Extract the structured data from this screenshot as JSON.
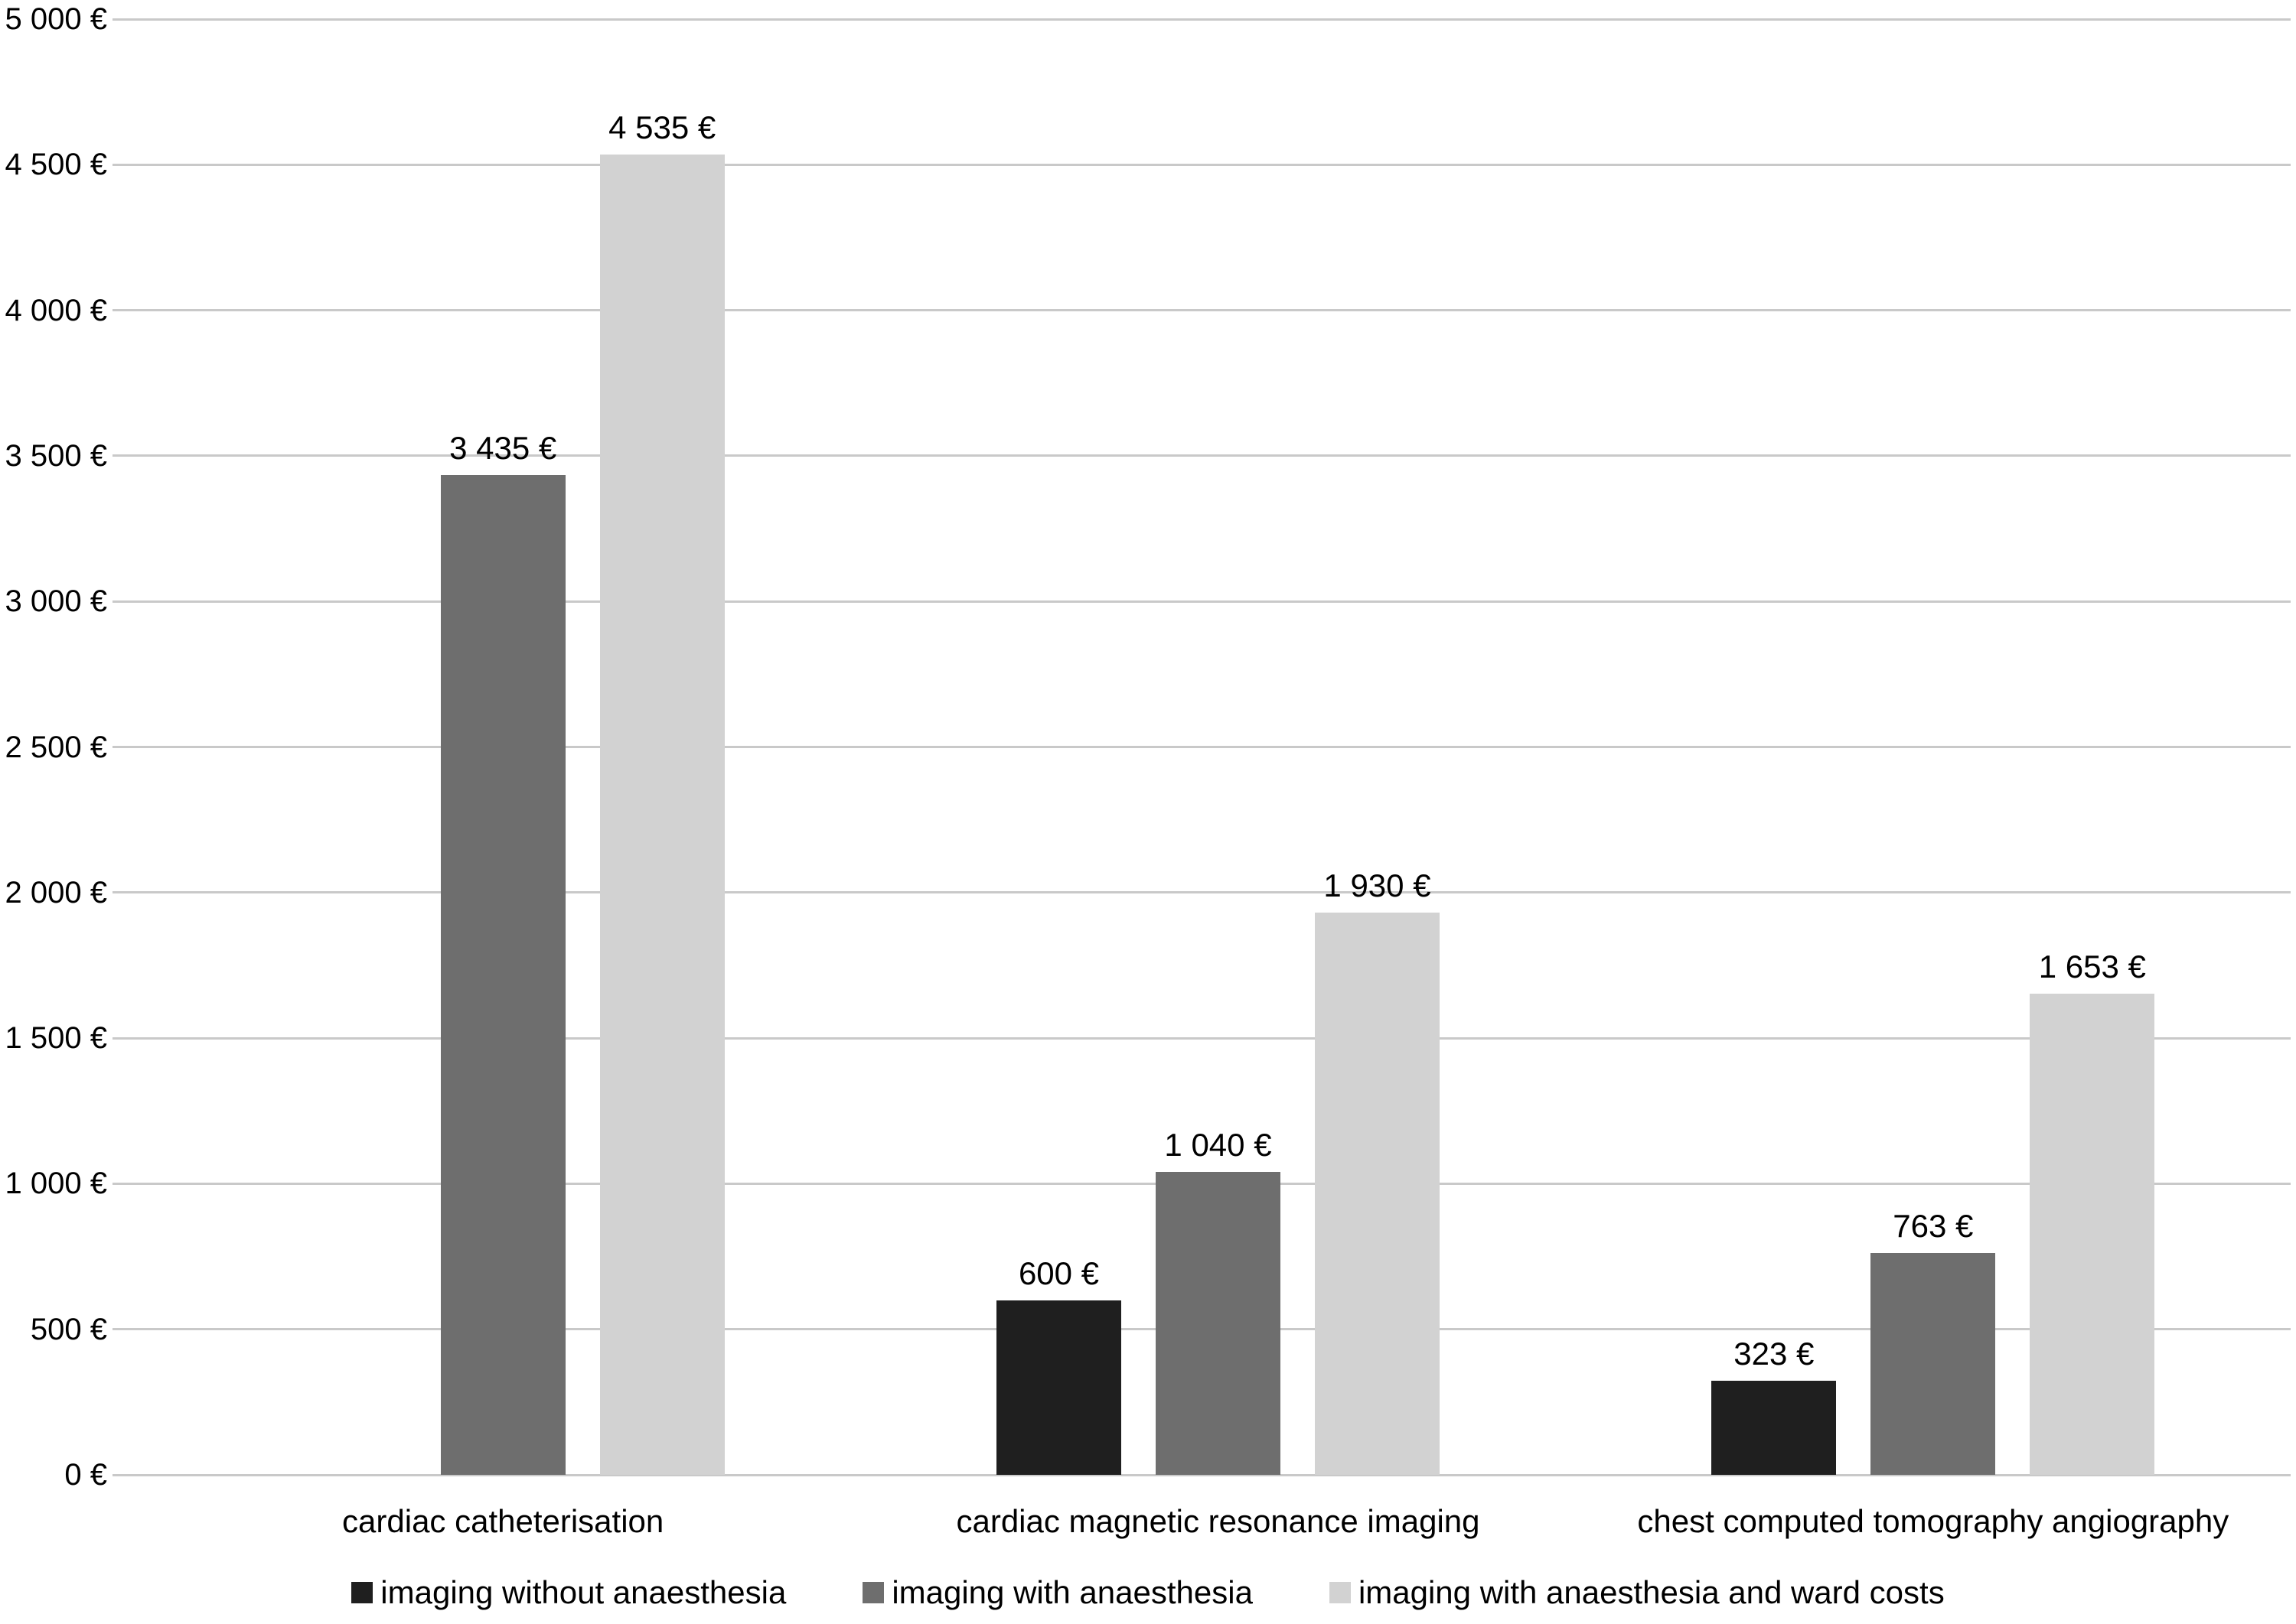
{
  "chart_data": {
    "type": "bar",
    "title": "",
    "xlabel": "",
    "ylabel": "",
    "categories": [
      "cardiac catheterisation",
      "cardiac magnetic resonance imaging",
      "chest computed tomography angiography"
    ],
    "series": [
      {
        "name": "imaging without anaesthesia",
        "color": "#1f1f1f",
        "values": [
          null,
          600,
          323
        ],
        "value_labels": [
          "",
          "600 €",
          "323 €"
        ]
      },
      {
        "name": "imaging with anaesthesia",
        "color": "#6e6e6e",
        "values": [
          3435,
          1040,
          763
        ],
        "value_labels": [
          "3 435 €",
          "1 040 €",
          "763 €"
        ]
      },
      {
        "name": "imaging with anaesthesia and ward costs",
        "color": "#d2d2d2",
        "values": [
          4535,
          1930,
          1653
        ],
        "value_labels": [
          "4 535 €",
          "1 930 €",
          "1 653 €"
        ]
      }
    ],
    "y_axis": {
      "min": 0,
      "max": 5000,
      "step": 500,
      "tick_labels": [
        "0 €",
        "500 €",
        "1 000 €",
        "1 500 €",
        "2 000 €",
        "2 500 €",
        "3 000 €",
        "3 500 €",
        "4 000 €",
        "4 500 €",
        "5 000 €"
      ]
    },
    "ylim": [
      0,
      5000
    ],
    "grid": true,
    "legend_position": "bottom",
    "gridline_color": "#c9c9c9",
    "background_color": "#ffffff",
    "text_color": "#000000"
  }
}
